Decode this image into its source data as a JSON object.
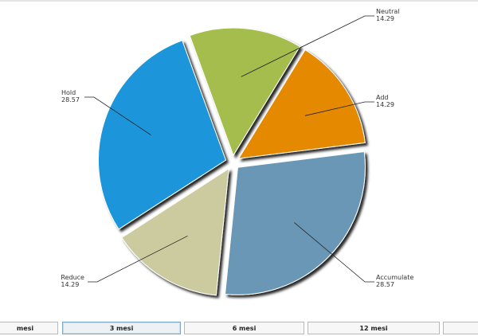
{
  "chart_data": {
    "type": "pie",
    "exploded": true,
    "slices": [
      {
        "label": "Neutral",
        "value": 14.29,
        "color": "#a4bd4e"
      },
      {
        "label": "Add",
        "value": 14.29,
        "color": "#e58a00"
      },
      {
        "label": "Accumulate",
        "value": 28.57,
        "color": "#6b97b5"
      },
      {
        "label": "Reduce",
        "value": 14.29,
        "color": "#cbcb9f"
      },
      {
        "label": "Hold",
        "value": 28.57,
        "color": "#1b95db"
      }
    ],
    "value_labels": [
      "14.29",
      "14.29",
      "28.57",
      "14.29",
      "28.57"
    ]
  },
  "period_tabs": [
    {
      "label": "mesi",
      "active": false
    },
    {
      "label": "3 mesi",
      "active": true
    },
    {
      "label": "6 mesi",
      "active": false
    },
    {
      "label": "12 mesi",
      "active": false
    },
    {
      "label": "",
      "active": false
    }
  ]
}
